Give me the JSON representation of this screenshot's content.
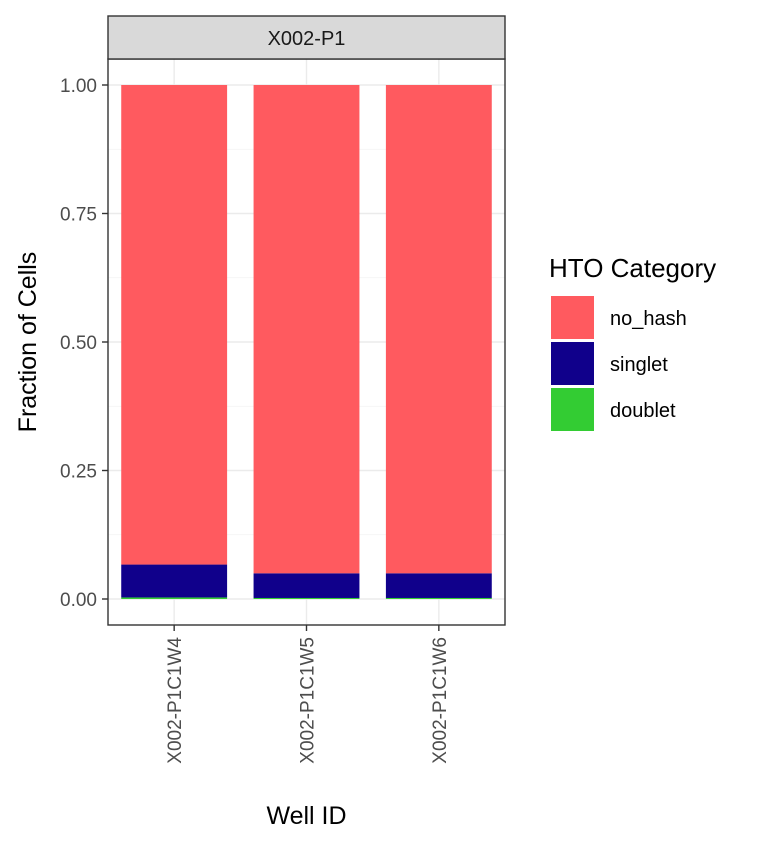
{
  "chart_data": {
    "type": "bar",
    "stacked": true,
    "facet": "X002-P1",
    "categories": [
      "X002-P1C1W4",
      "X002-P1C1W5",
      "X002-P1C1W6"
    ],
    "series": [
      {
        "name": "doublet",
        "values": [
          0.003,
          0.002,
          0.002
        ],
        "color": "#33CC33"
      },
      {
        "name": "singlet",
        "values": [
          0.064,
          0.048,
          0.048
        ],
        "color": "#10008B"
      },
      {
        "name": "no_hash",
        "values": [
          0.933,
          0.95,
          0.95
        ],
        "color": "#FF5A5F"
      }
    ],
    "xlabel": "Well ID",
    "ylabel": "Fraction of Cells",
    "ylim": [
      0,
      1
    ],
    "yticks": [
      "0.00",
      "0.25",
      "0.50",
      "0.75",
      "1.00"
    ],
    "grid": true,
    "legend": {
      "title": "HTO Category",
      "position": "right",
      "items": [
        {
          "label": "no_hash",
          "color": "#FF5A5F"
        },
        {
          "label": "singlet",
          "color": "#10008B"
        },
        {
          "label": "doublet",
          "color": "#33CC33"
        }
      ]
    }
  }
}
